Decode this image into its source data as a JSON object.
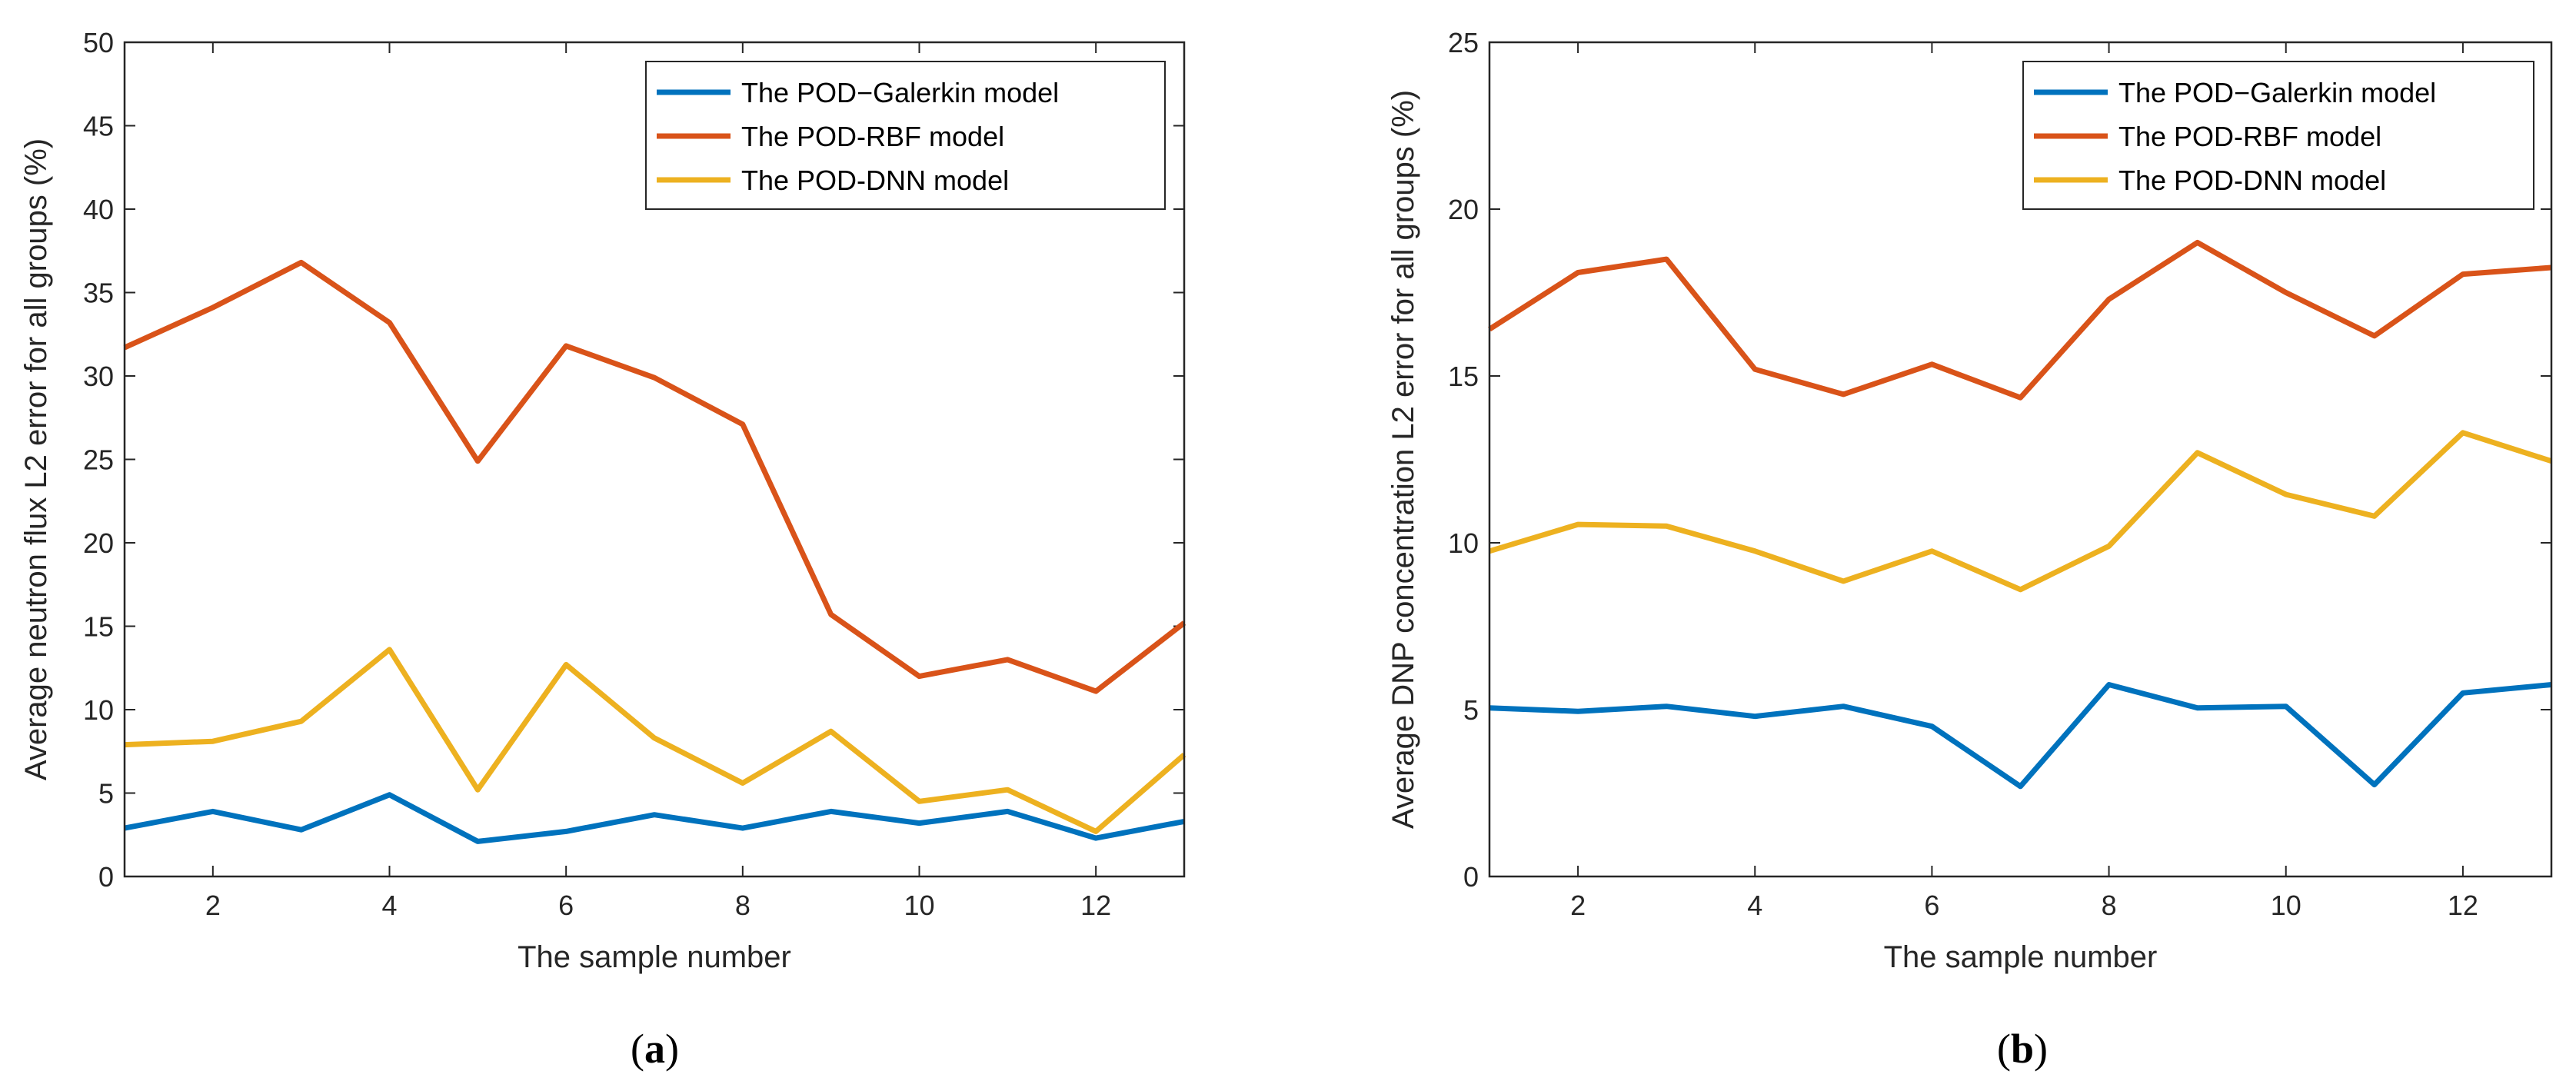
{
  "chart_data": [
    {
      "type": "line",
      "panel_label": "(a)",
      "panel_label_parts": [
        "(",
        "a",
        ")"
      ],
      "xlabel": "The sample number",
      "ylabel": "Average neutron flux L2 error for all groups (%)",
      "xlim": [
        1,
        13
      ],
      "ylim": [
        0,
        50
      ],
      "xticks": [
        2,
        4,
        6,
        8,
        10,
        12
      ],
      "yticks": [
        0,
        5,
        10,
        15,
        20,
        25,
        30,
        35,
        40,
        45,
        50
      ],
      "legend_position": "top-right",
      "x": [
        1,
        2,
        3,
        4,
        5,
        6,
        7,
        8,
        9,
        10,
        11,
        12,
        13
      ],
      "series": [
        {
          "name": "The POD−Galerkin model",
          "color": "#0072BD",
          "values": [
            2.9,
            3.9,
            2.8,
            4.9,
            2.1,
            2.7,
            3.7,
            2.9,
            3.9,
            3.2,
            3.9,
            2.3,
            3.3
          ]
        },
        {
          "name": "The POD-RBF model",
          "color": "#D95319",
          "values": [
            31.7,
            34.1,
            36.8,
            33.2,
            24.9,
            31.8,
            29.9,
            27.1,
            15.7,
            12.0,
            13.0,
            11.1,
            15.2
          ]
        },
        {
          "name": "The POD-DNN model",
          "color": "#EDB120",
          "values": [
            7.9,
            8.1,
            9.3,
            13.6,
            5.2,
            12.7,
            8.3,
            5.6,
            8.7,
            4.5,
            5.2,
            2.7,
            7.3
          ]
        }
      ]
    },
    {
      "type": "line",
      "panel_label": "(b)",
      "panel_label_parts": [
        "(",
        "b",
        ")"
      ],
      "xlabel": "The sample number",
      "ylabel": "Average DNP concentration L2 error for all groups (%)",
      "xlim": [
        1,
        13
      ],
      "ylim": [
        0,
        25
      ],
      "xticks": [
        2,
        4,
        6,
        8,
        10,
        12
      ],
      "yticks": [
        0,
        5,
        10,
        15,
        20,
        25
      ],
      "legend_position": "top-right",
      "x": [
        1,
        2,
        3,
        4,
        5,
        6,
        7,
        8,
        9,
        10,
        11,
        12,
        13
      ],
      "series": [
        {
          "name": "The POD−Galerkin model",
          "color": "#0072BD",
          "values": [
            5.05,
            4.95,
            5.1,
            4.8,
            5.1,
            4.5,
            2.7,
            5.75,
            5.05,
            5.1,
            2.75,
            5.5,
            5.75
          ]
        },
        {
          "name": "The POD-RBF model",
          "color": "#D95319",
          "values": [
            16.4,
            18.1,
            18.5,
            15.2,
            14.45,
            15.35,
            14.35,
            17.3,
            19.0,
            17.5,
            16.2,
            18.05,
            18.25
          ]
        },
        {
          "name": "The POD-DNN model",
          "color": "#EDB120",
          "values": [
            9.75,
            10.55,
            10.5,
            9.75,
            8.85,
            9.75,
            8.6,
            9.9,
            12.7,
            11.45,
            10.8,
            13.3,
            12.45
          ]
        }
      ]
    }
  ]
}
